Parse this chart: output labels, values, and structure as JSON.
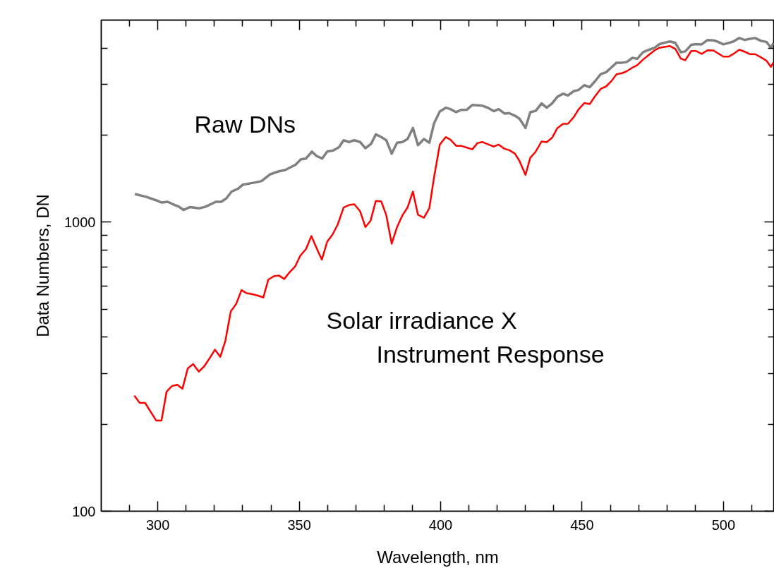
{
  "chart_data": {
    "type": "line",
    "xlabel": "Wavelength, nm",
    "ylabel": "Data Numbers, DN",
    "log": "y",
    "grid": false,
    "legend": false,
    "xlim": [
      280,
      518
    ],
    "ylim": [
      100,
      5000
    ],
    "xticks": [
      {
        "value": 290,
        "label": null
      },
      300,
      {
        "value": 310,
        "label": null
      },
      {
        "value": 320,
        "label": null
      },
      {
        "value": 330,
        "label": null
      },
      {
        "value": 340,
        "label": null
      },
      350,
      {
        "value": 360,
        "label": null
      },
      {
        "value": 370,
        "label": null
      },
      {
        "value": 380,
        "label": null
      },
      {
        "value": 390,
        "label": null
      },
      400,
      {
        "value": 410,
        "label": null
      },
      {
        "value": 420,
        "label": null
      },
      {
        "value": 430,
        "label": null
      },
      {
        "value": 440,
        "label": null
      },
      450,
      {
        "value": 460,
        "label": null
      },
      {
        "value": 470,
        "label": null
      },
      {
        "value": 480,
        "label": null
      },
      {
        "value": 490,
        "label": null
      },
      500,
      {
        "value": 510,
        "label": null
      }
    ],
    "yticks": [
      100,
      {
        "value": 200,
        "label": null
      },
      {
        "value": 300,
        "label": null
      },
      {
        "value": 400,
        "label": null
      },
      {
        "value": 500,
        "label": null
      },
      {
        "value": 600,
        "label": null
      },
      {
        "value": 700,
        "label": null
      },
      {
        "value": 800,
        "label": null
      },
      {
        "value": 900,
        "label": null
      },
      1000,
      {
        "value": 2000,
        "label": null
      },
      {
        "value": 3000,
        "label": null
      },
      {
        "value": 4000,
        "label": null
      }
    ],
    "series": [
      {
        "name": "Raw DNs",
        "color": "#808080",
        "x": [
          291.9,
          296.0,
          299.3,
          301.4,
          303.5,
          306.0,
          307.2,
          309.1,
          311.4,
          314.7,
          316.8,
          320.5,
          322.4,
          324.2,
          326.1,
          328.4,
          330.0,
          333.4,
          336.7,
          339.6,
          342.5,
          345.0,
          348.7,
          350.6,
          352.4,
          354.5,
          356.2,
          358.1,
          359.9,
          362.0,
          364.1,
          365.7,
          367.6,
          369.5,
          371.5,
          373.4,
          375.4,
          377.1,
          379.0,
          380.8,
          382.7,
          384.6,
          386.5,
          388.3,
          390.2,
          392.0,
          394.1,
          396.0,
          397.7,
          399.7,
          401.8,
          403.5,
          405.5,
          407.2,
          409.3,
          411.2,
          414.7,
          416.8,
          418.8,
          420.5,
          422.6,
          424.2,
          426.3,
          427.9,
          430.0,
          431.7,
          433.6,
          435.7,
          437.5,
          439.4,
          441.3,
          443.3,
          445.0,
          447.1,
          448.7,
          450.8,
          452.7,
          454.5,
          456.6,
          458.5,
          460.4,
          462.2,
          464.1,
          465.8,
          467.8,
          469.5,
          471.6,
          473.7,
          475.7,
          477.4,
          479.5,
          481.1,
          483.0,
          484.9,
          486.5,
          488.6,
          490.3,
          492.3,
          494.4,
          496.5,
          498.1,
          500.0,
          501.9,
          503.5,
          505.6,
          507.5,
          509.4,
          511.2,
          513.1,
          515.2,
          516.8,
          517.7
        ],
        "values": [
          1251,
          1222,
          1191,
          1169,
          1176,
          1146,
          1135,
          1102,
          1128,
          1117,
          1130,
          1176,
          1176,
          1208,
          1276,
          1306,
          1347,
          1366,
          1387,
          1462,
          1497,
          1514,
          1580,
          1650,
          1660,
          1753,
          1692,
          1660,
          1756,
          1770,
          1818,
          1920,
          1894,
          1920,
          1894,
          1801,
          1865,
          2013,
          1970,
          1920,
          1725,
          1883,
          1894,
          1939,
          2117,
          1847,
          1939,
          1883,
          2201,
          2416,
          2488,
          2460,
          2402,
          2445,
          2450,
          2543,
          2528,
          2484,
          2421,
          2460,
          2375,
          2384,
          2334,
          2279,
          2117,
          2402,
          2427,
          2573,
          2488,
          2573,
          2716,
          2781,
          2744,
          2841,
          2864,
          2977,
          2931,
          3066,
          3249,
          3301,
          3431,
          3561,
          3561,
          3581,
          3702,
          3673,
          3873,
          3949,
          4011,
          4130,
          4186,
          4219,
          4170,
          3873,
          3896,
          4106,
          4130,
          4121,
          4268,
          4253,
          4204,
          4121,
          4170,
          4219,
          4335,
          4268,
          4310,
          4335,
          4244,
          4204,
          4011,
          4170
        ]
      },
      {
        "name": "Solar irradiance X\nInstrument Response",
        "color": "#ff0000",
        "x": [
          291.7,
          293.6,
          295.5,
          299.4,
          301.3,
          303.1,
          305.0,
          306.9,
          308.7,
          310.6,
          312.5,
          314.5,
          316.4,
          318.3,
          320.2,
          322.1,
          323.9,
          325.8,
          327.7,
          329.6,
          331.4,
          333.5,
          335.4,
          337.3,
          339.1,
          341.0,
          342.8,
          344.7,
          346.6,
          348.6,
          350.4,
          352.4,
          354.3,
          356.1,
          358.0,
          359.9,
          361.8,
          363.6,
          365.7,
          367.6,
          369.5,
          371.5,
          373.4,
          375.2,
          377.1,
          379.0,
          380.8,
          382.7,
          384.6,
          386.5,
          388.3,
          390.2,
          392.0,
          394.1,
          396.0,
          397.7,
          399.7,
          401.8,
          403.5,
          405.5,
          407.2,
          409.3,
          411.2,
          413.0,
          414.7,
          416.8,
          418.8,
          420.5,
          422.6,
          424.2,
          426.3,
          427.9,
          430.0,
          431.7,
          433.6,
          435.7,
          437.5,
          439.4,
          441.3,
          443.3,
          445.0,
          447.1,
          448.7,
          450.8,
          452.7,
          454.5,
          456.6,
          458.5,
          460.4,
          462.2,
          464.1,
          465.8,
          467.8,
          469.5,
          471.6,
          473.7,
          475.7,
          477.4,
          479.5,
          481.1,
          483.0,
          484.9,
          486.5,
          488.6,
          490.3,
          492.3,
          494.4,
          496.5,
          498.1,
          500.0,
          501.9,
          503.5,
          505.6,
          507.5,
          509.4,
          511.2,
          513.1,
          515.2,
          516.8,
          517.7
        ],
        "values": [
          251,
          237,
          237,
          206,
          206,
          259,
          271,
          274,
          265,
          312,
          323,
          304,
          317,
          338,
          362,
          342,
          389,
          491,
          521,
          582,
          568,
          563,
          557,
          549,
          633,
          650,
          654,
          636,
          671,
          704,
          766,
          807,
          895,
          815,
          742,
          856,
          907,
          981,
          1124,
          1146,
          1153,
          1092,
          962,
          1010,
          1185,
          1180,
          1056,
          842,
          962,
          1056,
          1124,
          1276,
          1060,
          1036,
          1117,
          1434,
          1855,
          1970,
          1928,
          1837,
          1837,
          1811,
          1786,
          1876,
          1894,
          1858,
          1826,
          1855,
          1794,
          1776,
          1725,
          1627,
          1456,
          1670,
          1753,
          1902,
          1891,
          1958,
          2117,
          2188,
          2188,
          2310,
          2450,
          2582,
          2562,
          2716,
          2892,
          2948,
          3077,
          3249,
          3275,
          3327,
          3425,
          3492,
          3652,
          3796,
          3932,
          4011,
          4043,
          4066,
          3972,
          3681,
          3632,
          3910,
          3910,
          3819,
          3932,
          3925,
          3835,
          3739,
          3739,
          3819,
          3949,
          3888,
          3812,
          3812,
          3725,
          3618,
          3445,
          3569
        ]
      }
    ]
  }
}
